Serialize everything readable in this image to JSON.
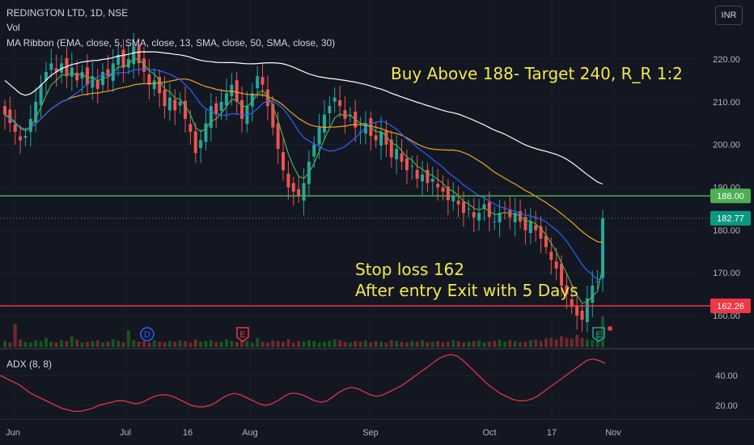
{
  "header": {
    "symbol": "REDINGTON LTD, 1D, NSE",
    "volume_label": "Vol",
    "ma_ribbon_label": "MA Ribbon (EMA, close, 5, SMA, close, 13, SMA, close, 50, SMA, close, 30)",
    "adx_label": "ADX (8, 8)",
    "currency": "INR"
  },
  "annotations": {
    "buy_note": "Buy Above 188- Target 240, R_R 1:2",
    "stop_line1": "Stop loss 162",
    "stop_line2": "After entry Exit with 5 Days"
  },
  "colors": {
    "background": "#131722",
    "up": "#26a69a",
    "down": "#ef5350",
    "buy_line": "#4caf50",
    "stop_line": "#f23645",
    "ema5": "#4caf50",
    "sma13": "#2962ff",
    "sma50": "#ffffff",
    "sma30": "#f7a21b",
    "adx": "#f23645",
    "annotation": "#f5e64c"
  },
  "chart_data": {
    "type": "candlestick",
    "price_axis_ticks": [
      "220.00",
      "210.00",
      "200.00",
      "190.00",
      "180.00",
      "170.00",
      "160.00"
    ],
    "adx_axis_ticks": [
      "40.00",
      "20.00"
    ],
    "x_axis_ticks": [
      "Jun",
      "Jul",
      "16",
      "Aug",
      "Sep",
      "Oct",
      "17",
      "Nov"
    ],
    "horizontal_lines": [
      {
        "name": "buy",
        "value": 188.0,
        "label": "188.00"
      },
      {
        "name": "stop",
        "value": 162.26,
        "label": "162.26"
      }
    ],
    "last_price": {
      "value": 182.77,
      "label": "182.77"
    },
    "event_markers": [
      {
        "letter": "D",
        "date": "Jul 7",
        "kind": "dividend"
      },
      {
        "letter": "E",
        "date": "Jul 27",
        "kind": "earnings"
      },
      {
        "letter": "E",
        "date": "Oct 28",
        "kind": "earnings"
      }
    ],
    "price_ylim": [
      157,
      228
    ],
    "adx_ylim": [
      10,
      58
    ],
    "close_series_approx": [
      207,
      205,
      203,
      201,
      202,
      206,
      210,
      214,
      217,
      219,
      217,
      219,
      216,
      218,
      215,
      217,
      214,
      216,
      213,
      217,
      216,
      219,
      221,
      218,
      220,
      223,
      219,
      217,
      214,
      215,
      212,
      209,
      211,
      208,
      210,
      206,
      203,
      198,
      201,
      205,
      209,
      207,
      210,
      212,
      214,
      210,
      206,
      209,
      212,
      216,
      214,
      209,
      204,
      199,
      194,
      190,
      189,
      188,
      191,
      196,
      200,
      204,
      207,
      209,
      211,
      209,
      206,
      207,
      204,
      203,
      205,
      202,
      201,
      203,
      200,
      197,
      199,
      196,
      194,
      195,
      192,
      193,
      191,
      192,
      190,
      189,
      187,
      188,
      186,
      184,
      185,
      183,
      184,
      186,
      183,
      182,
      184,
      185,
      183,
      184,
      182,
      180,
      182,
      180,
      178,
      176,
      173,
      171,
      167,
      165,
      162,
      160,
      159,
      164,
      167,
      168,
      182.77
    ],
    "volume_series_approx": [
      8,
      6,
      30,
      10,
      7,
      6,
      9,
      8,
      12,
      7,
      6,
      9,
      8,
      14,
      10,
      6,
      7,
      8,
      9,
      6,
      7,
      10,
      8,
      6,
      22,
      9,
      7,
      8,
      6,
      9,
      7,
      6,
      8,
      7,
      9,
      8,
      6,
      10,
      7,
      8,
      9,
      6,
      7,
      10,
      8,
      7,
      9,
      8,
      6,
      12,
      7,
      6,
      9,
      8,
      7,
      10,
      6,
      8,
      7,
      9,
      8,
      6,
      7,
      8,
      10,
      9,
      7,
      6,
      8,
      7,
      9,
      6,
      8,
      7,
      6,
      9,
      8,
      7,
      6,
      8,
      7,
      9,
      6,
      7,
      8,
      6,
      7,
      9,
      8,
      6,
      7,
      8,
      9,
      6,
      7,
      8,
      10,
      7,
      9,
      8,
      6,
      7,
      9,
      10,
      8,
      11,
      12,
      10,
      14,
      12,
      11,
      16,
      12,
      10,
      9,
      14,
      40
    ],
    "adx_series_approx": [
      40,
      38,
      36,
      34,
      31,
      28,
      26,
      24,
      22,
      20,
      18,
      17,
      16,
      16,
      17,
      18,
      20,
      21,
      22,
      23,
      23,
      22,
      21,
      22,
      24,
      26,
      27,
      27,
      26,
      24,
      22,
      20,
      19,
      19,
      20,
      22,
      25,
      27,
      28,
      27,
      25,
      23,
      21,
      20,
      21,
      23,
      26,
      28,
      28,
      27,
      25,
      23,
      22,
      23,
      26,
      29,
      31,
      32,
      31,
      29,
      27,
      26,
      27,
      29,
      31,
      33,
      36,
      39,
      42,
      45,
      48,
      51,
      53,
      54,
      53,
      50,
      46,
      42,
      38,
      34,
      31,
      28,
      26,
      24,
      23,
      23,
      24,
      26,
      29,
      32,
      35,
      38,
      41,
      44,
      47,
      50,
      51,
      50,
      48
    ]
  }
}
